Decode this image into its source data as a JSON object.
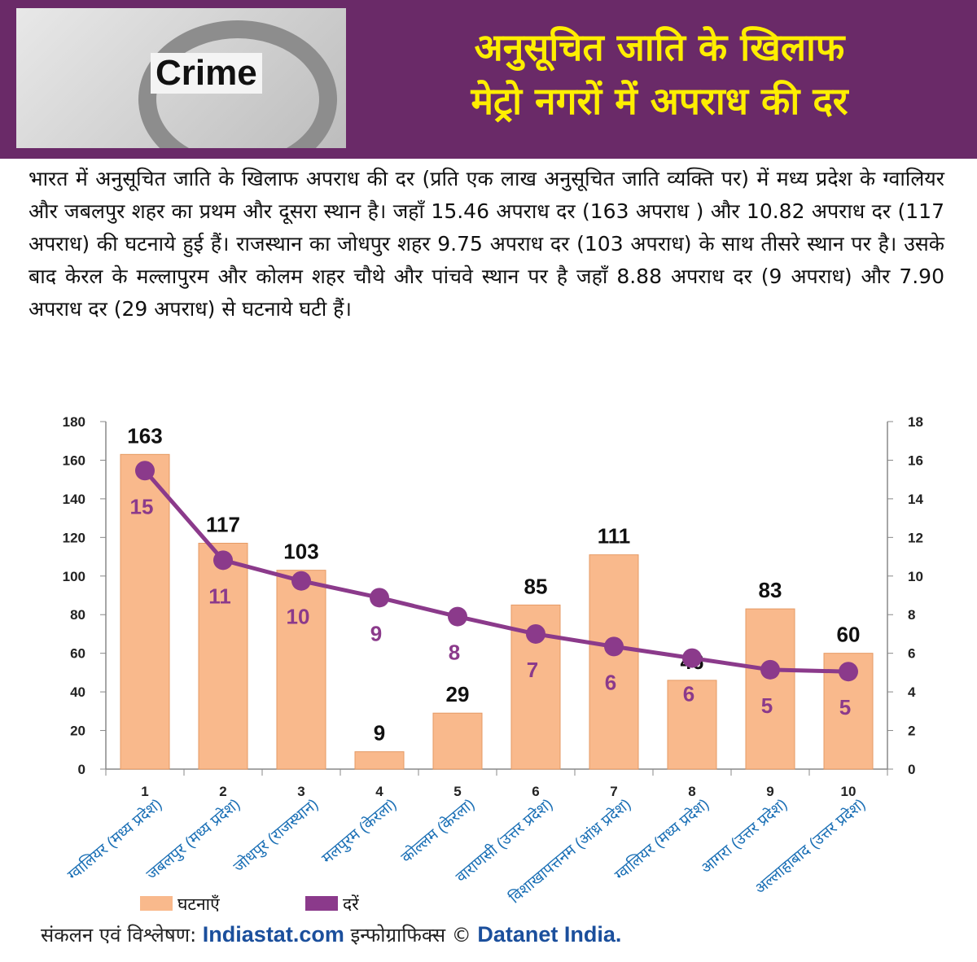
{
  "header": {
    "title_line_1": "अनुसूचित जाति के खिलाफ",
    "title_line_2": "मेट्रो नगरों में अपराध की दर",
    "image_text": "Crime"
  },
  "description": "भारत में अनुसूचित जाति के खिलाफ अपराध की दर (प्रति एक लाख अनुसूचित जाति व्यक्ति पर) में मध्य प्रदेश के ग्वालियर और जबलपुर शहर का प्रथम और दूसरा स्थान है। जहाँ 15.46 अपराध दर (163 अपराध ) और 10.82 अपराध दर (117 अपराध) की घटनाये हुई हैं। राजस्थान का जोधपुर शहर 9.75 अपराध दर (103 अपराध) के साथ तीसरे स्थान पर है। उसके बाद केरल के मल्लापुरम और कोलम शहर चौथे और पांचवे स्थान पर है जहाँ 8.88 अपराध दर (9 अपराध) और 7.90 अपराध दर (29 अपराध) से घटनाये घटी हैं।",
  "chart_data": {
    "type": "bar_line",
    "ranks": [
      1,
      2,
      3,
      4,
      5,
      6,
      7,
      8,
      9,
      10
    ],
    "categories": [
      "ग्वालियर (मध्य प्रदेश)",
      "जबलपुर (मध्य प्रदेश)",
      "जोधपुर (राजस्थान)",
      "मलपुरम (केरला)",
      "कोल्लम (केरला)",
      "वाराणसी (उत्तर प्रदेश)",
      "विशाखापत्तनम (आंध्र प्रदेश)",
      "ग्वालियर (मध्य प्रदेश)",
      "आगरा (उत्तर प्रदेश)",
      "अल्लाहाबाद (उत्तर प्रदेश)"
    ],
    "series": [
      {
        "name": "घटनाएँ",
        "color": "#f9b98c",
        "values": [
          163,
          117,
          103,
          9,
          29,
          85,
          111,
          46,
          83,
          60
        ]
      },
      {
        "name": "दरें",
        "color": "#8b3a8b",
        "axis": "y2",
        "values": [
          15.46,
          10.82,
          9.75,
          8.88,
          7.9,
          7.0,
          6.35,
          5.75,
          5.15,
          5.05
        ],
        "value_labels": [
          "15",
          "11",
          "10",
          "9",
          "8",
          "7",
          "6",
          "6",
          "5",
          "5"
        ]
      }
    ],
    "ylim": [
      0,
      180
    ],
    "yticks": [
      0,
      20,
      40,
      60,
      80,
      100,
      120,
      140,
      160,
      180
    ],
    "y2lim": [
      0,
      18
    ],
    "y2ticks": [
      0,
      2,
      4,
      6,
      8,
      10,
      12,
      14,
      16,
      18
    ]
  },
  "footer": {
    "credit_label": "संकलन एवं विश्लेषण:",
    "source": "Indiastat.com",
    "infographic_label": "इन्फोग्राफिक्स ©",
    "publisher": "Datanet India."
  }
}
